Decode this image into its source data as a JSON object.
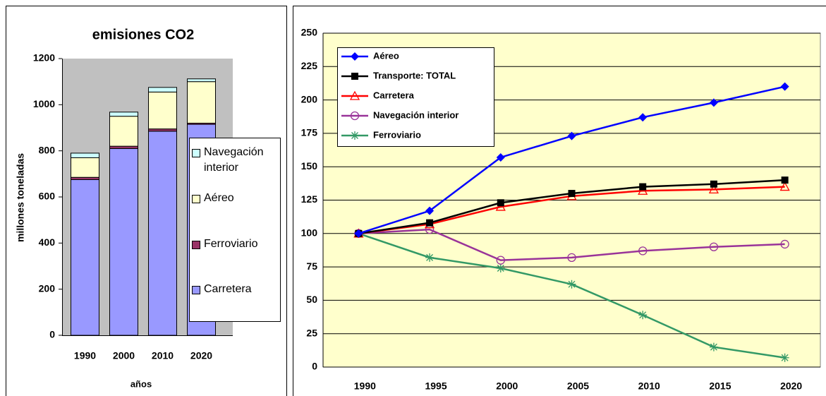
{
  "chart_data": [
    {
      "type": "bar",
      "stacked": true,
      "title": "emisiones CO2",
      "ylabel": "millones toneladas",
      "xlabel": "años",
      "categories": [
        "1990",
        "2000",
        "2010",
        "2020"
      ],
      "series": [
        {
          "name": "Carretera",
          "color": "#9999ff",
          "values": [
            675,
            810,
            885,
            915
          ]
        },
        {
          "name": "Ferroviario",
          "color": "#993366",
          "values": [
            10,
            10,
            10,
            5
          ]
        },
        {
          "name": "Aéreo",
          "color": "#ffffcc",
          "values": [
            85,
            130,
            160,
            180
          ]
        },
        {
          "name": "Navegación interior",
          "color": "#ccffff",
          "values": [
            20,
            18,
            20,
            12
          ]
        }
      ],
      "ylim": [
        0,
        1200
      ],
      "yticks": [
        0,
        200,
        400,
        600,
        800,
        1000,
        1200
      ],
      "background": "#c0c0c0"
    },
    {
      "type": "line",
      "categories": [
        "1990",
        "1995",
        "2000",
        "2005",
        "2010",
        "2015",
        "2020"
      ],
      "series": [
        {
          "name": "Aéreo",
          "color": "#0000ff",
          "marker": "diamond",
          "values": [
            100,
            117,
            157,
            173,
            187,
            198,
            210
          ]
        },
        {
          "name": "Transporte: TOTAL",
          "color": "#000000",
          "marker": "square",
          "values": [
            100,
            108,
            123,
            130,
            135,
            137,
            140
          ]
        },
        {
          "name": "Carretera",
          "color": "#ff0000",
          "marker": "triangle",
          "values": [
            100,
            107,
            120,
            128,
            132,
            133,
            135
          ]
        },
        {
          "name": "Navegación interior",
          "color": "#993399",
          "marker": "circle",
          "values": [
            100,
            103,
            80,
            82,
            87,
            90,
            92
          ]
        },
        {
          "name": "Ferroviario",
          "color": "#339966",
          "marker": "star",
          "values": [
            100,
            82,
            74,
            62,
            39,
            15,
            7
          ]
        }
      ],
      "ylim": [
        0,
        250
      ],
      "yticks": [
        0,
        25,
        50,
        75,
        100,
        125,
        150,
        175,
        200,
        225,
        250
      ],
      "grid": true,
      "background": "#ffffcc"
    }
  ]
}
